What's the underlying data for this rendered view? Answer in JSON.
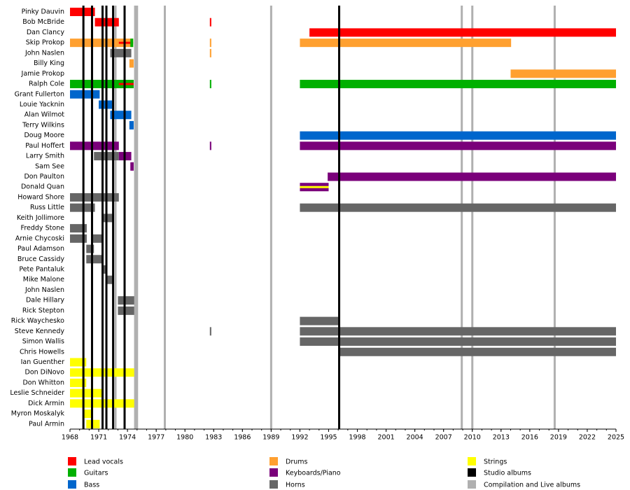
{
  "chart_data": {
    "type": "timeline",
    "xlim": [
      1968,
      2025
    ],
    "xticks": [
      1968,
      1971,
      1974,
      1977,
      1980,
      1983,
      1986,
      1989,
      1992,
      1995,
      1998,
      2001,
      2004,
      2007,
      2010,
      2013,
      2016,
      2019,
      2022,
      2025
    ],
    "roles": [
      {
        "name": "Lead vocals",
        "color": "#ff0000"
      },
      {
        "name": "Guitars",
        "color": "#00b000"
      },
      {
        "name": "Bass",
        "color": "#0066cc"
      },
      {
        "name": "Drums",
        "color": "#ffa030"
      },
      {
        "name": "Keyboards/Piano",
        "color": "#7a007a"
      },
      {
        "name": "Horns",
        "color": "#666666"
      },
      {
        "name": "Strings",
        "color": "#ffff00"
      }
    ],
    "album_lines": [
      {
        "name": "Studio albums",
        "color": "#000000",
        "years": [
          1969.4,
          1970.3,
          1971.4,
          1971.8,
          1972.5,
          1973.7,
          1996.1
        ]
      },
      {
        "name": "Compilation and Live albums",
        "color": "#b0b0b0",
        "years": [
          1972.75,
          1974.8,
          1975.0,
          1977.9,
          1989.0,
          2008.9,
          2010.0,
          2018.6
        ]
      }
    ],
    "members": [
      {
        "name": "Pinky Dauvin",
        "bars": [
          {
            "start": 1968,
            "end": 1970.6,
            "role": 0
          }
        ]
      },
      {
        "name": "Bob McBride",
        "bars": [
          {
            "start": 1970.6,
            "end": 1973.1,
            "role": 0
          },
          {
            "start": 1982.6,
            "end": 1982.75,
            "role": 0
          }
        ]
      },
      {
        "name": "Dan Clancy",
        "bars": [
          {
            "start": 1993.0,
            "end": 2025,
            "role": 0
          }
        ]
      },
      {
        "name": "Skip Prokop",
        "bars": [
          {
            "start": 1968,
            "end": 1974.6,
            "role": 3
          },
          {
            "start": 1973.1,
            "end": 1974.6,
            "role": 0,
            "thin": true
          },
          {
            "start": 1974.3,
            "end": 1974.6,
            "role": 1
          },
          {
            "start": 1982.6,
            "end": 1982.75,
            "role": 3
          },
          {
            "start": 1992,
            "end": 2014.05,
            "role": 3
          }
        ]
      },
      {
        "name": "John Naslen",
        "bars": [
          {
            "start": 1972.2,
            "end": 1974.4,
            "role": 5
          },
          {
            "start": 1982.6,
            "end": 1982.75,
            "role": 3
          }
        ]
      },
      {
        "name": "Billy King",
        "bars": [
          {
            "start": 1974.2,
            "end": 1974.65,
            "role": 3
          }
        ]
      },
      {
        "name": "Jamie Prokop",
        "bars": [
          {
            "start": 2014,
            "end": 2025,
            "role": 3
          }
        ]
      },
      {
        "name": "Ralph Cole",
        "bars": [
          {
            "start": 1968,
            "end": 1974.65,
            "role": 1
          },
          {
            "start": 1973.1,
            "end": 1974.65,
            "role": 0,
            "thin": true
          },
          {
            "start": 1982.6,
            "end": 1982.75,
            "role": 1
          },
          {
            "start": 1992,
            "end": 2025,
            "role": 1
          }
        ]
      },
      {
        "name": "Grant Fullerton",
        "bars": [
          {
            "start": 1968,
            "end": 1971.1,
            "role": 2
          }
        ]
      },
      {
        "name": "Louie Yacknin",
        "bars": [
          {
            "start": 1971.0,
            "end": 1972.4,
            "role": 2
          }
        ]
      },
      {
        "name": "Alan Wilmot",
        "bars": [
          {
            "start": 1972.2,
            "end": 1974.4,
            "role": 2
          }
        ]
      },
      {
        "name": "Terry Wilkins",
        "bars": [
          {
            "start": 1974.2,
            "end": 1974.65,
            "role": 2
          }
        ]
      },
      {
        "name": "Doug Moore",
        "bars": [
          {
            "start": 1992,
            "end": 2025,
            "role": 2
          }
        ]
      },
      {
        "name": "Paul Hoffert",
        "bars": [
          {
            "start": 1968,
            "end": 1973.1,
            "role": 4
          },
          {
            "start": 1982.6,
            "end": 1982.75,
            "role": 4
          },
          {
            "start": 1992,
            "end": 2025,
            "role": 4
          }
        ]
      },
      {
        "name": "Larry Smith",
        "bars": [
          {
            "start": 1970.5,
            "end": 1973.1,
            "role": 5
          },
          {
            "start": 1973.1,
            "end": 1974.4,
            "role": 4
          }
        ]
      },
      {
        "name": "Sam See",
        "bars": [
          {
            "start": 1974.3,
            "end": 1974.65,
            "role": 4
          }
        ]
      },
      {
        "name": "Don Paulton",
        "bars": [
          {
            "start": 1994.9,
            "end": 2025,
            "role": 4
          }
        ]
      },
      {
        "name": "Donald Quan",
        "bars": [
          {
            "start": 1992,
            "end": 1995,
            "role": 4
          },
          {
            "start": 1992,
            "end": 1995,
            "role": 6,
            "thin": true
          }
        ]
      },
      {
        "name": "Howard Shore",
        "bars": [
          {
            "start": 1968,
            "end": 1973.1,
            "role": 5
          }
        ]
      },
      {
        "name": "Russ Little",
        "bars": [
          {
            "start": 1968,
            "end": 1970.6,
            "role": 5
          },
          {
            "start": 1992,
            "end": 2025,
            "role": 5
          }
        ]
      },
      {
        "name": "Keith Jollimore",
        "bars": [
          {
            "start": 1971.4,
            "end": 1972.6,
            "role": 5
          }
        ]
      },
      {
        "name": "Freddy Stone",
        "bars": [
          {
            "start": 1968,
            "end": 1969.75,
            "role": 5
          }
        ]
      },
      {
        "name": "Arnie Chycoski",
        "bars": [
          {
            "start": 1968,
            "end": 1969.75,
            "role": 5
          },
          {
            "start": 1970.2,
            "end": 1971.4,
            "role": 5
          }
        ]
      },
      {
        "name": "Paul Adamson",
        "bars": [
          {
            "start": 1969.7,
            "end": 1970.5,
            "role": 5
          }
        ]
      },
      {
        "name": "Bruce Cassidy",
        "bars": [
          {
            "start": 1969.7,
            "end": 1971.4,
            "role": 5
          }
        ]
      },
      {
        "name": "Pete Pantaluk",
        "bars": [
          {
            "start": 1971.4,
            "end": 1971.9,
            "role": 5
          }
        ]
      },
      {
        "name": "Mike Malone",
        "bars": [
          {
            "start": 1971.7,
            "end": 1972.6,
            "role": 5
          }
        ]
      },
      {
        "name": "John Naslen",
        "bars": []
      },
      {
        "name": "Dale Hillary",
        "bars": [
          {
            "start": 1973.0,
            "end": 1974.7,
            "role": 5
          }
        ]
      },
      {
        "name": "Rick Stepton",
        "bars": [
          {
            "start": 1973.0,
            "end": 1974.7,
            "role": 5
          }
        ]
      },
      {
        "name": "Rick Waychesko",
        "bars": [
          {
            "start": 1992,
            "end": 1996.1,
            "role": 5
          }
        ]
      },
      {
        "name": "Steve Kennedy",
        "bars": [
          {
            "start": 1982.6,
            "end": 1982.75,
            "role": 5
          },
          {
            "start": 1992,
            "end": 2025,
            "role": 5
          }
        ]
      },
      {
        "name": "Simon Wallis",
        "bars": [
          {
            "start": 1992,
            "end": 2025,
            "role": 5
          }
        ]
      },
      {
        "name": "Chris Howells",
        "bars": [
          {
            "start": 1996.1,
            "end": 2025,
            "role": 5
          }
        ]
      },
      {
        "name": "Ian Guenther",
        "bars": [
          {
            "start": 1968,
            "end": 1969.7,
            "role": 6
          }
        ]
      },
      {
        "name": "Don DiNovo",
        "bars": [
          {
            "start": 1968,
            "end": 1974.7,
            "role": 6
          }
        ]
      },
      {
        "name": "Don Whitton",
        "bars": [
          {
            "start": 1968,
            "end": 1969.7,
            "role": 6
          }
        ]
      },
      {
        "name": "Leslie Schneider",
        "bars": [
          {
            "start": 1968,
            "end": 1971.4,
            "role": 6
          }
        ]
      },
      {
        "name": "Dick Armin",
        "bars": [
          {
            "start": 1968,
            "end": 1974.7,
            "role": 6
          }
        ]
      },
      {
        "name": "Myron Moskalyk",
        "bars": [
          {
            "start": 1969.5,
            "end": 1970.4,
            "role": 6
          }
        ]
      },
      {
        "name": "Paul Armin",
        "bars": [
          {
            "start": 1969.7,
            "end": 1971.1,
            "role": 6
          }
        ]
      }
    ]
  }
}
